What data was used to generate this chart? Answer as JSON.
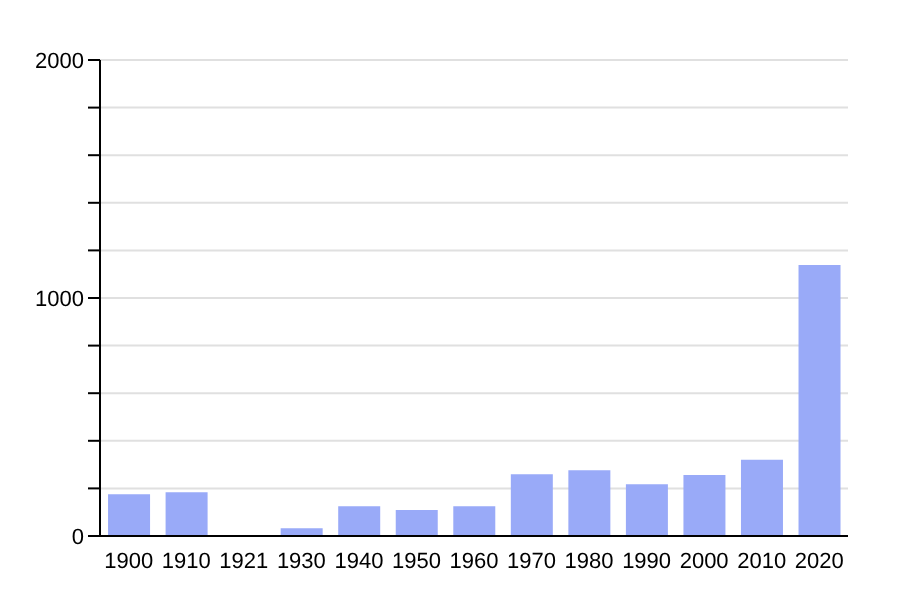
{
  "chart_data": {
    "type": "bar",
    "categories": [
      "1900",
      "1910",
      "1921",
      "1930",
      "1940",
      "1950",
      "1960",
      "1970",
      "1980",
      "1990",
      "2000",
      "2010",
      "2020"
    ],
    "values": [
      175,
      184,
      0,
      33,
      125,
      109,
      125,
      259,
      276,
      217,
      256,
      320,
      1139
    ],
    "color": "#99aaf8",
    "ylim": [
      0,
      2000
    ],
    "yticks": [
      0,
      {
        "value": 200,
        "label": null
      },
      {
        "value": 400,
        "label": null
      },
      {
        "value": 600,
        "label": null
      },
      {
        "value": 800,
        "label": null
      },
      1000,
      {
        "value": 1200,
        "label": null
      },
      {
        "value": 1400,
        "label": null
      },
      {
        "value": 1600,
        "label": null
      },
      {
        "value": 1800,
        "label": null
      },
      2000
    ],
    "grid": "y",
    "legend": false
  }
}
